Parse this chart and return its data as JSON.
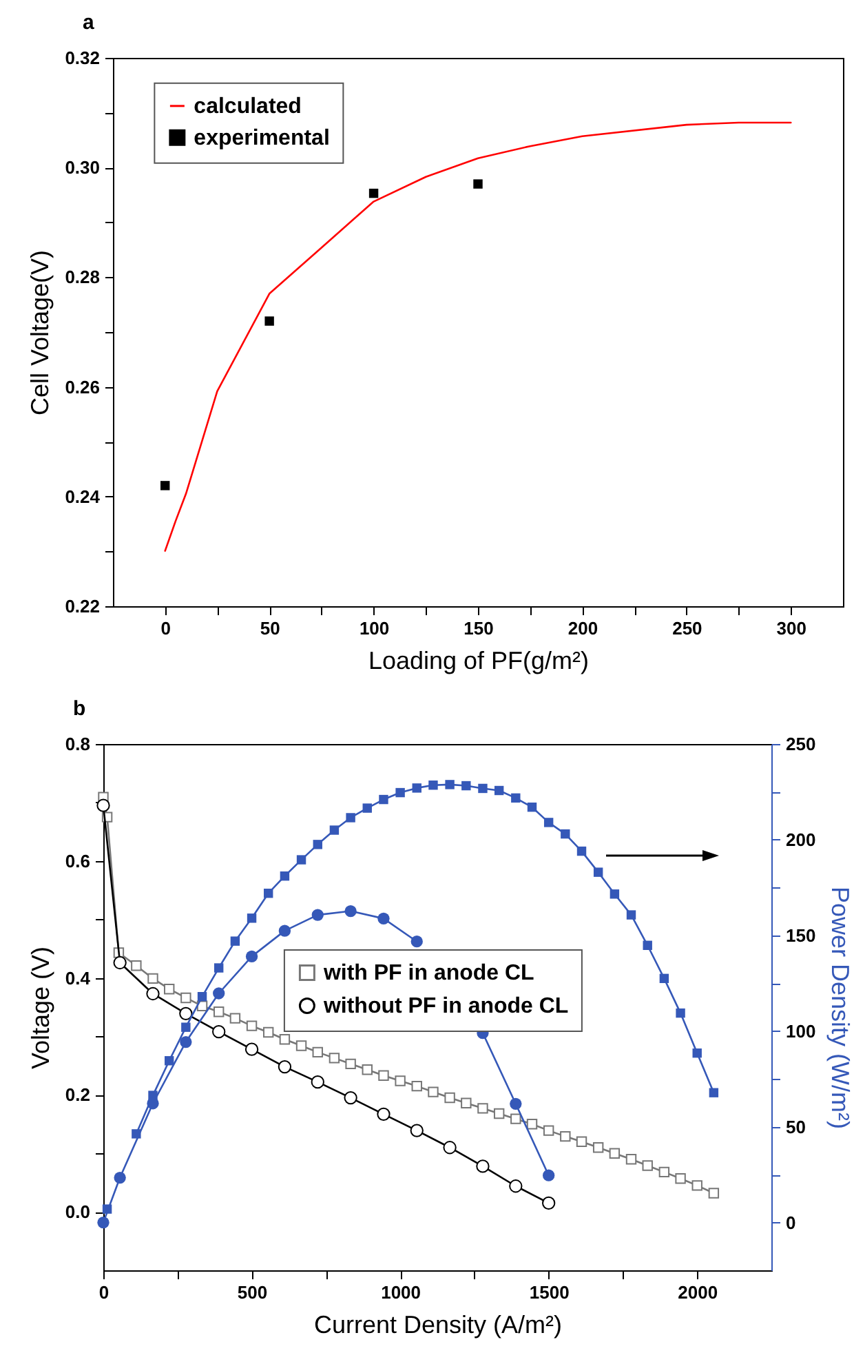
{
  "chart_data": [
    {
      "type": "line",
      "title": "a",
      "xlabel": "Loading of PF(g/m²)",
      "ylabel": "Cell Voltage(V)",
      "xlim": [
        -25,
        325
      ],
      "ylim": [
        0.22,
        0.32
      ],
      "xticks": [
        0,
        {
          "value": 25,
          "label": null
        },
        50,
        {
          "value": 75,
          "label": null
        },
        100,
        {
          "value": 125,
          "label": null
        },
        150,
        {
          "value": 175,
          "label": null
        },
        200,
        {
          "value": 225,
          "label": null
        },
        250,
        {
          "value": 275,
          "label": null
        },
        300
      ],
      "yticks": [
        0.22,
        {
          "value": 0.23,
          "label": null
        },
        0.24,
        {
          "value": 0.25,
          "label": null
        },
        0.26,
        {
          "value": 0.27,
          "label": null
        },
        0.28,
        {
          "value": 0.29,
          "label": null
        },
        {
          "value": 0.3,
          "label": "0.30"
        },
        {
          "value": 0.31,
          "label": null
        },
        0.32
      ],
      "legend": "top left",
      "series": [
        {
          "name": "calculated",
          "type": "line",
          "color": "#ff0000",
          "marker": "none",
          "x": [
            0,
            5,
            10,
            25,
            50,
            75,
            100,
            125,
            150,
            175,
            200,
            250,
            275,
            300
          ],
          "values": [
            0.2301,
            0.2355,
            0.2405,
            0.2592,
            0.277,
            0.2854,
            0.2938,
            0.2983,
            0.3017,
            0.3039,
            0.3057,
            0.3078,
            0.3082,
            0.3082
          ]
        },
        {
          "name": "experimental",
          "type": "scatter",
          "color": "#000000",
          "marker": "square",
          "x": [
            0,
            50,
            100,
            150
          ],
          "values": [
            0.242,
            0.272,
            0.2953,
            0.297
          ]
        }
      ]
    },
    {
      "type": "line",
      "title": "b",
      "xlabel": "Current Density (A/m²)",
      "ylabel": "Voltage (V)",
      "y2label": "Power Density (W/m²)",
      "xlim": [
        0,
        2250
      ],
      "ylim": [
        -0.1,
        0.8
      ],
      "y2lim": [
        -25,
        250
      ],
      "xticks": [
        0,
        {
          "value": 250,
          "label": null
        },
        500,
        {
          "value": 750,
          "label": null
        },
        1000,
        {
          "value": 1250,
          "label": null
        },
        1500,
        {
          "value": 1750,
          "label": null
        },
        2000
      ],
      "yticks": [
        {
          "value": 0,
          "label": "0.0"
        },
        {
          "value": 0.1,
          "label": null
        },
        0.2,
        {
          "value": 0.3,
          "label": null
        },
        0.4,
        {
          "value": 0.5,
          "label": null
        },
        0.6,
        {
          "value": 0.7,
          "label": null
        },
        0.8
      ],
      "y2ticks": [
        0,
        {
          "value": 25,
          "label": null
        },
        50,
        {
          "value": 75,
          "label": null
        },
        100,
        {
          "value": 125,
          "label": null
        },
        150,
        {
          "value": 175,
          "label": null
        },
        200,
        {
          "value": 225,
          "label": null
        },
        250
      ],
      "legend": "center",
      "series": [
        {
          "name": "with PF in anode CL",
          "type": "line",
          "color": "#777777",
          "marker": "square",
          "x": [
            0,
            13,
            52,
            111,
            167,
            222,
            278,
            333,
            389,
            444,
            500,
            556,
            611,
            667,
            722,
            778,
            833,
            889,
            944,
            1000,
            1056,
            1111,
            1167,
            1222,
            1278,
            1333,
            1389,
            1444,
            1500,
            1556,
            1611,
            1667,
            1722,
            1778,
            1833,
            1889,
            1944,
            2000,
            2056
          ],
          "values": [
            0.709,
            0.675,
            0.443,
            0.421,
            0.399,
            0.381,
            0.366,
            0.352,
            0.342,
            0.331,
            0.318,
            0.307,
            0.295,
            0.284,
            0.273,
            0.263,
            0.253,
            0.243,
            0.233,
            0.224,
            0.215,
            0.205,
            0.195,
            0.186,
            0.177,
            0.168,
            0.159,
            0.15,
            0.139,
            0.129,
            0.12,
            0.11,
            0.1,
            0.09,
            0.079,
            0.068,
            0.057,
            0.045,
            0.032
          ]
        },
        {
          "name": "without PF in anode CL",
          "type": "line",
          "color": "#000000",
          "marker": "circle",
          "x": [
            0,
            56,
            167,
            278,
            389,
            500,
            611,
            722,
            833,
            944,
            1056,
            1167,
            1278,
            1389,
            1500
          ],
          "values": [
            0.695,
            0.426,
            0.373,
            0.339,
            0.308,
            0.278,
            0.248,
            0.222,
            0.195,
            0.167,
            0.139,
            0.11,
            0.078,
            0.044,
            0.015
          ]
        },
        {
          "type": "line",
          "axis": "y2",
          "color": "#3558b8",
          "marker": "square",
          "x": [
            13,
            56,
            111,
            167,
            222,
            278,
            333,
            389,
            444,
            500,
            556,
            611,
            667,
            722,
            778,
            833,
            889,
            944,
            1000,
            1056,
            1111,
            1167,
            1222,
            1278,
            1333,
            1389,
            1444,
            1500,
            1556,
            1611,
            1667,
            1722,
            1778,
            1833,
            1889,
            1944,
            2000,
            2056
          ],
          "values": [
            7,
            null,
            46.3,
            66.4,
            84.5,
            102,
            118,
            133,
            147,
            159,
            172,
            181,
            189.5,
            197.5,
            205,
            211.5,
            216.5,
            221,
            224.6,
            227,
            228.5,
            228.8,
            228.2,
            226.8,
            225.7,
            221.8,
            217,
            209,
            203,
            194,
            183,
            171.6,
            160.7,
            144.8,
            127.5,
            109.4,
            88.5,
            67.8
          ]
        },
        {
          "type": "line",
          "axis": "y2",
          "color": "#3558b8",
          "marker": "circle",
          "x": [
            0,
            56,
            167,
            278,
            389,
            500,
            611,
            722,
            833,
            944,
            1056,
            1167,
            1278,
            1389,
            1500
          ],
          "values": [
            0,
            23.4,
            62.2,
            94.3,
            119.7,
            139,
            152.4,
            160.7,
            162.7,
            158.8,
            146.8,
            null,
            99,
            62,
            24.6
          ]
        }
      ]
    }
  ]
}
